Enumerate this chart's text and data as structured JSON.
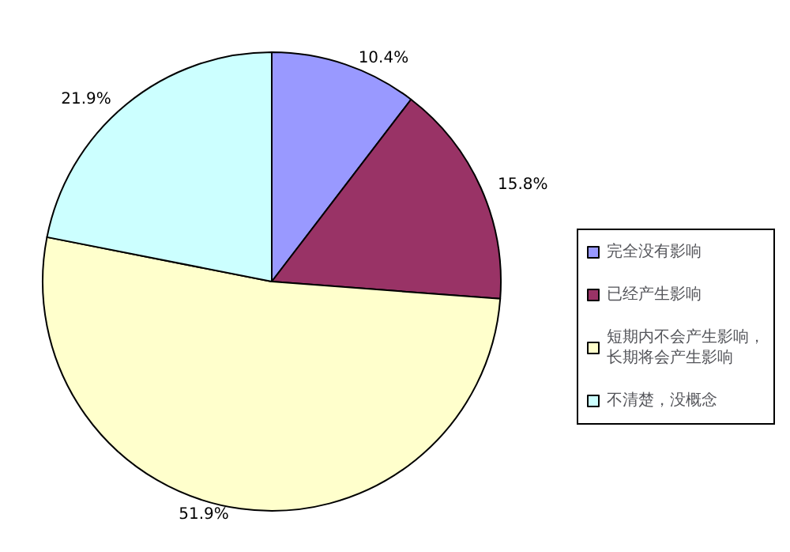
{
  "chart_data": {
    "type": "pie",
    "categories": [
      "完全没有影响",
      "已经产生影响",
      "短期内不会产生影响，长期将会产生影响",
      "不清楚，没概念"
    ],
    "values": [
      10.4,
      15.8,
      51.9,
      21.9
    ],
    "colors": [
      "#9999ff",
      "#993366",
      "#ffffcc",
      "#ccffff"
    ],
    "value_labels": [
      "10.4%",
      "15.8%",
      "51.9%",
      "21.9%"
    ],
    "legend": "right"
  }
}
